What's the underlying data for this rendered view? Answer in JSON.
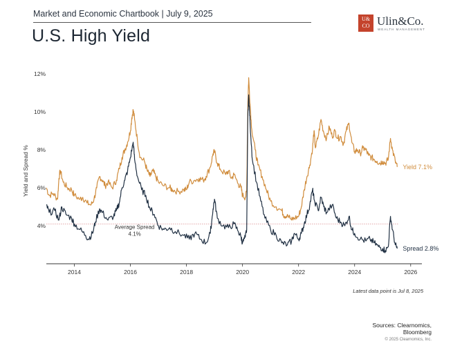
{
  "header": {
    "chartbook": "Market and Economic Chartbook | July 9, 2025",
    "title": "U.S. High Yield"
  },
  "logo": {
    "mark": "U&CO",
    "name": "Ulin&Co.",
    "subtitle": "WEALTH MANAGEMENT",
    "color": "#c4432c"
  },
  "footer": {
    "note": "Latest data point is Jul 8, 2025",
    "sources_line1": "Sources: Clearnomics,",
    "sources_line2": "Bloomberg",
    "copyright": "© 2025 Clearnomics, Inc."
  },
  "chart_data": {
    "type": "line",
    "title": "",
    "xlabel": "",
    "ylabel": "Yield and Spread %",
    "xlim": [
      2013.0,
      2026.4
    ],
    "ylim": [
      2,
      12
    ],
    "x_ticks": [
      2014,
      2016,
      2018,
      2020,
      2022,
      2024,
      2026
    ],
    "y_ticks": [
      {
        "value": 4,
        "label": "4%"
      },
      {
        "value": 6,
        "label": "6%"
      },
      {
        "value": 8,
        "label": "8%"
      },
      {
        "value": 10,
        "label": "10%"
      },
      {
        "value": 12,
        "label": "12%"
      }
    ],
    "grid": false,
    "series": [
      {
        "name": "Yield",
        "end_label": "Yield 7.1%",
        "color": "#d08c3c",
        "points": [
          [
            2013.0,
            6.0
          ],
          [
            2013.1,
            5.6
          ],
          [
            2013.25,
            5.7
          ],
          [
            2013.4,
            5.4
          ],
          [
            2013.45,
            6.5
          ],
          [
            2013.5,
            6.9
          ],
          [
            2013.6,
            6.3
          ],
          [
            2013.75,
            6.0
          ],
          [
            2013.9,
            5.9
          ],
          [
            2014.0,
            5.6
          ],
          [
            2014.2,
            5.4
          ],
          [
            2014.3,
            5.5
          ],
          [
            2014.45,
            5.2
          ],
          [
            2014.6,
            5.1
          ],
          [
            2014.7,
            5.4
          ],
          [
            2014.8,
            6.0
          ],
          [
            2014.9,
            6.6
          ],
          [
            2015.0,
            6.4
          ],
          [
            2015.1,
            6.1
          ],
          [
            2015.2,
            6.3
          ],
          [
            2015.35,
            6.0
          ],
          [
            2015.5,
            6.4
          ],
          [
            2015.6,
            7.0
          ],
          [
            2015.7,
            7.6
          ],
          [
            2015.8,
            8.0
          ],
          [
            2015.9,
            8.4
          ],
          [
            2016.0,
            9.0
          ],
          [
            2016.05,
            9.7
          ],
          [
            2016.1,
            10.1
          ],
          [
            2016.15,
            9.6
          ],
          [
            2016.25,
            8.5
          ],
          [
            2016.35,
            7.6
          ],
          [
            2016.5,
            7.4
          ],
          [
            2016.6,
            6.9
          ],
          [
            2016.7,
            6.6
          ],
          [
            2016.8,
            6.9
          ],
          [
            2016.9,
            6.6
          ],
          [
            2017.0,
            6.3
          ],
          [
            2017.2,
            6.1
          ],
          [
            2017.4,
            6.0
          ],
          [
            2017.5,
            5.9
          ],
          [
            2017.7,
            5.8
          ],
          [
            2017.9,
            5.9
          ],
          [
            2018.0,
            5.9
          ],
          [
            2018.1,
            6.3
          ],
          [
            2018.3,
            6.4
          ],
          [
            2018.45,
            6.5
          ],
          [
            2018.6,
            6.4
          ],
          [
            2018.7,
            6.6
          ],
          [
            2018.85,
            7.1
          ],
          [
            2018.95,
            7.8
          ],
          [
            2019.0,
            7.9
          ],
          [
            2019.1,
            7.3
          ],
          [
            2019.2,
            7.0
          ],
          [
            2019.4,
            6.7
          ],
          [
            2019.5,
            6.9
          ],
          [
            2019.6,
            6.5
          ],
          [
            2019.7,
            6.7
          ],
          [
            2019.85,
            6.2
          ],
          [
            2019.95,
            6.0
          ],
          [
            2020.0,
            5.6
          ],
          [
            2020.1,
            5.5
          ],
          [
            2020.15,
            5.8
          ],
          [
            2020.19,
            10.5
          ],
          [
            2020.22,
            11.8
          ],
          [
            2020.27,
            10.4
          ],
          [
            2020.33,
            9.1
          ],
          [
            2020.45,
            8.0
          ],
          [
            2020.55,
            7.2
          ],
          [
            2020.7,
            6.6
          ],
          [
            2020.85,
            5.9
          ],
          [
            2021.0,
            5.3
          ],
          [
            2021.2,
            5.0
          ],
          [
            2021.4,
            4.8
          ],
          [
            2021.5,
            4.5
          ],
          [
            2021.6,
            4.6
          ],
          [
            2021.75,
            4.3
          ],
          [
            2021.85,
            4.4
          ],
          [
            2022.0,
            4.5
          ],
          [
            2022.1,
            5.0
          ],
          [
            2022.2,
            5.9
          ],
          [
            2022.3,
            6.6
          ],
          [
            2022.4,
            7.2
          ],
          [
            2022.5,
            8.1
          ],
          [
            2022.55,
            9.0
          ],
          [
            2022.6,
            8.1
          ],
          [
            2022.7,
            8.7
          ],
          [
            2022.8,
            9.6
          ],
          [
            2022.9,
            8.9
          ],
          [
            2023.0,
            8.6
          ],
          [
            2023.1,
            9.2
          ],
          [
            2023.2,
            8.7
          ],
          [
            2023.3,
            9.0
          ],
          [
            2023.4,
            8.6
          ],
          [
            2023.5,
            8.7
          ],
          [
            2023.6,
            8.3
          ],
          [
            2023.7,
            9.0
          ],
          [
            2023.8,
            9.4
          ],
          [
            2023.9,
            8.4
          ],
          [
            2024.0,
            7.9
          ],
          [
            2024.1,
            8.0
          ],
          [
            2024.2,
            7.8
          ],
          [
            2024.3,
            8.1
          ],
          [
            2024.4,
            8.0
          ],
          [
            2024.5,
            7.7
          ],
          [
            2024.6,
            7.6
          ],
          [
            2024.7,
            7.5
          ],
          [
            2024.8,
            7.4
          ],
          [
            2024.9,
            7.3
          ],
          [
            2025.0,
            7.4
          ],
          [
            2025.1,
            7.3
          ],
          [
            2025.2,
            7.5
          ],
          [
            2025.28,
            8.6
          ],
          [
            2025.35,
            8.0
          ],
          [
            2025.45,
            7.4
          ],
          [
            2025.52,
            7.1
          ]
        ]
      },
      {
        "name": "Spread",
        "end_label": "Spread 2.8%",
        "color": "#1f2f42",
        "points": [
          [
            2013.0,
            5.1
          ],
          [
            2013.1,
            4.7
          ],
          [
            2013.3,
            4.8
          ],
          [
            2013.45,
            4.3
          ],
          [
            2013.55,
            5.0
          ],
          [
            2013.7,
            4.6
          ],
          [
            2013.9,
            4.4
          ],
          [
            2014.0,
            4.1
          ],
          [
            2014.2,
            3.8
          ],
          [
            2014.4,
            3.5
          ],
          [
            2014.5,
            3.3
          ],
          [
            2014.65,
            3.6
          ],
          [
            2014.75,
            4.2
          ],
          [
            2014.9,
            4.9
          ],
          [
            2015.0,
            4.7
          ],
          [
            2015.2,
            4.3
          ],
          [
            2015.4,
            4.5
          ],
          [
            2015.5,
            4.8
          ],
          [
            2015.6,
            5.2
          ],
          [
            2015.7,
            6.0
          ],
          [
            2015.8,
            6.4
          ],
          [
            2015.9,
            6.9
          ],
          [
            2016.0,
            7.6
          ],
          [
            2016.1,
            8.4
          ],
          [
            2016.15,
            7.5
          ],
          [
            2016.25,
            6.6
          ],
          [
            2016.4,
            5.9
          ],
          [
            2016.55,
            5.6
          ],
          [
            2016.7,
            4.9
          ],
          [
            2016.85,
            4.6
          ],
          [
            2017.0,
            4.0
          ],
          [
            2017.2,
            3.8
          ],
          [
            2017.4,
            3.9
          ],
          [
            2017.6,
            3.7
          ],
          [
            2017.9,
            3.5
          ],
          [
            2018.1,
            3.3
          ],
          [
            2018.3,
            3.6
          ],
          [
            2018.5,
            3.3
          ],
          [
            2018.7,
            3.1
          ],
          [
            2018.85,
            3.6
          ],
          [
            2018.95,
            4.9
          ],
          [
            2019.0,
            5.4
          ],
          [
            2019.1,
            4.4
          ],
          [
            2019.3,
            4.0
          ],
          [
            2019.5,
            3.9
          ],
          [
            2019.7,
            4.1
          ],
          [
            2019.85,
            3.7
          ],
          [
            2019.95,
            3.4
          ],
          [
            2020.0,
            3.1
          ],
          [
            2020.1,
            3.4
          ],
          [
            2020.15,
            3.8
          ],
          [
            2020.19,
            9.9
          ],
          [
            2020.22,
            10.9
          ],
          [
            2020.27,
            9.4
          ],
          [
            2020.35,
            7.5
          ],
          [
            2020.5,
            6.3
          ],
          [
            2020.65,
            5.3
          ],
          [
            2020.8,
            4.4
          ],
          [
            2021.0,
            3.8
          ],
          [
            2021.2,
            3.5
          ],
          [
            2021.4,
            3.1
          ],
          [
            2021.6,
            3.0
          ],
          [
            2021.75,
            3.2
          ],
          [
            2021.85,
            3.6
          ],
          [
            2022.0,
            3.3
          ],
          [
            2022.1,
            3.6
          ],
          [
            2022.2,
            4.1
          ],
          [
            2022.3,
            4.6
          ],
          [
            2022.4,
            5.1
          ],
          [
            2022.5,
            5.9
          ],
          [
            2022.55,
            5.4
          ],
          [
            2022.7,
            4.8
          ],
          [
            2022.8,
            5.5
          ],
          [
            2022.9,
            5.0
          ],
          [
            2023.0,
            4.7
          ],
          [
            2023.2,
            5.1
          ],
          [
            2023.35,
            4.4
          ],
          [
            2023.5,
            4.2
          ],
          [
            2023.65,
            4.0
          ],
          [
            2023.8,
            4.5
          ],
          [
            2023.9,
            3.8
          ],
          [
            2024.0,
            3.6
          ],
          [
            2024.2,
            3.3
          ],
          [
            2024.4,
            3.2
          ],
          [
            2024.55,
            3.3
          ],
          [
            2024.7,
            3.1
          ],
          [
            2024.85,
            2.9
          ],
          [
            2025.0,
            2.8
          ],
          [
            2025.1,
            2.7
          ],
          [
            2025.2,
            2.9
          ],
          [
            2025.28,
            4.5
          ],
          [
            2025.35,
            3.8
          ],
          [
            2025.45,
            3.0
          ],
          [
            2025.52,
            2.8
          ]
        ]
      }
    ],
    "annotations": [
      {
        "type": "hline",
        "value": 4.1,
        "label_line1": "Average Spread",
        "label_line2": "4.1%",
        "color": "#d9878a"
      }
    ]
  }
}
